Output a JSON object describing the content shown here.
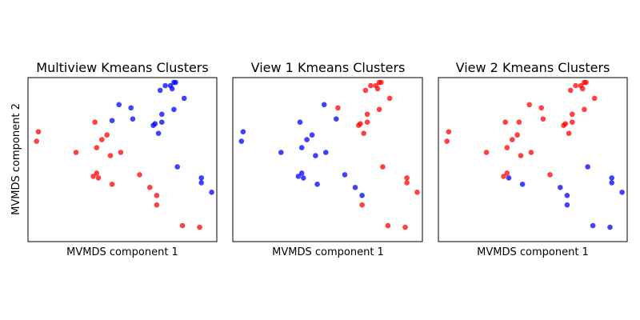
{
  "colors": {
    "cluster_0": "#ff0000",
    "cluster_1": "#0000ff",
    "marker_alpha": 0.75
  },
  "chart_data": [
    {
      "type": "scatter",
      "title": "Multiview Kmeans Clusters",
      "xlabel": "MVMDS component 1",
      "ylabel": "MVMDS component 2",
      "xlim": [
        -0.5,
        10.5
      ],
      "ylim": [
        -0.5,
        9.8
      ],
      "ticks": "none",
      "points": [
        {
          "x": 0.0,
          "y": 5.8,
          "c": 0
        },
        {
          "x": 0.1,
          "y": 6.4,
          "c": 0
        },
        {
          "x": 2.3,
          "y": 5.1,
          "c": 0
        },
        {
          "x": 3.5,
          "y": 5.4,
          "c": 0
        },
        {
          "x": 3.3,
          "y": 3.6,
          "c": 0
        },
        {
          "x": 3.5,
          "y": 3.8,
          "c": 0
        },
        {
          "x": 3.6,
          "y": 3.5,
          "c": 0
        },
        {
          "x": 3.8,
          "y": 5.9,
          "c": 0
        },
        {
          "x": 4.1,
          "y": 6.2,
          "c": 0
        },
        {
          "x": 3.4,
          "y": 7.0,
          "c": 0
        },
        {
          "x": 4.3,
          "y": 4.9,
          "c": 0
        },
        {
          "x": 4.4,
          "y": 3.1,
          "c": 0
        },
        {
          "x": 4.9,
          "y": 5.1,
          "c": 0
        },
        {
          "x": 6.0,
          "y": 3.7,
          "c": 0
        },
        {
          "x": 6.6,
          "y": 2.9,
          "c": 0
        },
        {
          "x": 7.0,
          "y": 2.4,
          "c": 0
        },
        {
          "x": 7.0,
          "y": 1.8,
          "c": 0
        },
        {
          "x": 8.5,
          "y": 0.5,
          "c": 0
        },
        {
          "x": 9.5,
          "y": 0.4,
          "c": 0
        },
        {
          "x": 4.8,
          "y": 8.1,
          "c": 1
        },
        {
          "x": 5.5,
          "y": 7.9,
          "c": 1
        },
        {
          "x": 4.4,
          "y": 7.1,
          "c": 1
        },
        {
          "x": 5.6,
          "y": 7.2,
          "c": 1
        },
        {
          "x": 6.8,
          "y": 6.8,
          "c": 1
        },
        {
          "x": 6.9,
          "y": 6.9,
          "c": 1
        },
        {
          "x": 7.3,
          "y": 7.0,
          "c": 1
        },
        {
          "x": 7.3,
          "y": 7.5,
          "c": 1
        },
        {
          "x": 7.1,
          "y": 6.3,
          "c": 1
        },
        {
          "x": 7.2,
          "y": 9.0,
          "c": 1
        },
        {
          "x": 7.5,
          "y": 9.3,
          "c": 1
        },
        {
          "x": 7.8,
          "y": 9.3,
          "c": 1
        },
        {
          "x": 7.9,
          "y": 9.1,
          "c": 1
        },
        {
          "x": 8.0,
          "y": 9.5,
          "c": 1
        },
        {
          "x": 8.1,
          "y": 9.5,
          "c": 1
        },
        {
          "x": 8.0,
          "y": 7.8,
          "c": 1
        },
        {
          "x": 8.6,
          "y": 8.5,
          "c": 1
        },
        {
          "x": 8.2,
          "y": 4.2,
          "c": 1
        },
        {
          "x": 9.6,
          "y": 3.5,
          "c": 1
        },
        {
          "x": 9.6,
          "y": 3.2,
          "c": 1
        },
        {
          "x": 10.2,
          "y": 2.6,
          "c": 1
        }
      ]
    },
    {
      "type": "scatter",
      "title": "View 1 Kmeans Clusters",
      "xlabel": "MVMDS component 1",
      "ylabel": "",
      "xlim": [
        -0.5,
        10.5
      ],
      "ylim": [
        -0.5,
        9.8
      ],
      "ticks": "none",
      "points": [
        {
          "x": 0.0,
          "y": 5.8,
          "c": 1
        },
        {
          "x": 0.1,
          "y": 6.4,
          "c": 1
        },
        {
          "x": 2.3,
          "y": 5.1,
          "c": 1
        },
        {
          "x": 3.5,
          "y": 5.4,
          "c": 1
        },
        {
          "x": 3.3,
          "y": 3.6,
          "c": 1
        },
        {
          "x": 3.5,
          "y": 3.8,
          "c": 1
        },
        {
          "x": 3.6,
          "y": 3.5,
          "c": 1
        },
        {
          "x": 3.8,
          "y": 5.9,
          "c": 1
        },
        {
          "x": 4.1,
          "y": 6.2,
          "c": 1
        },
        {
          "x": 3.4,
          "y": 7.0,
          "c": 1
        },
        {
          "x": 4.3,
          "y": 4.9,
          "c": 1
        },
        {
          "x": 4.4,
          "y": 3.1,
          "c": 1
        },
        {
          "x": 4.9,
          "y": 5.1,
          "c": 1
        },
        {
          "x": 6.0,
          "y": 3.7,
          "c": 1
        },
        {
          "x": 6.6,
          "y": 2.9,
          "c": 1
        },
        {
          "x": 7.0,
          "y": 2.4,
          "c": 1
        },
        {
          "x": 4.8,
          "y": 8.1,
          "c": 1
        },
        {
          "x": 5.5,
          "y": 7.2,
          "c": 1
        },
        {
          "x": 7.0,
          "y": 1.8,
          "c": 0
        },
        {
          "x": 8.5,
          "y": 0.5,
          "c": 0
        },
        {
          "x": 9.5,
          "y": 0.4,
          "c": 0
        },
        {
          "x": 5.6,
          "y": 7.9,
          "c": 0
        },
        {
          "x": 6.8,
          "y": 6.8,
          "c": 0
        },
        {
          "x": 6.9,
          "y": 6.9,
          "c": 0
        },
        {
          "x": 7.3,
          "y": 7.0,
          "c": 0
        },
        {
          "x": 7.3,
          "y": 7.5,
          "c": 0
        },
        {
          "x": 7.1,
          "y": 6.3,
          "c": 0
        },
        {
          "x": 7.2,
          "y": 9.0,
          "c": 0
        },
        {
          "x": 7.5,
          "y": 9.3,
          "c": 0
        },
        {
          "x": 7.8,
          "y": 9.3,
          "c": 0
        },
        {
          "x": 7.9,
          "y": 9.1,
          "c": 0
        },
        {
          "x": 8.0,
          "y": 9.5,
          "c": 0
        },
        {
          "x": 8.1,
          "y": 9.5,
          "c": 0
        },
        {
          "x": 8.0,
          "y": 7.8,
          "c": 0
        },
        {
          "x": 8.6,
          "y": 8.5,
          "c": 0
        },
        {
          "x": 8.2,
          "y": 4.2,
          "c": 0
        },
        {
          "x": 9.6,
          "y": 3.5,
          "c": 0
        },
        {
          "x": 9.6,
          "y": 3.2,
          "c": 0
        },
        {
          "x": 10.2,
          "y": 2.6,
          "c": 0
        }
      ]
    },
    {
      "type": "scatter",
      "title": "View 2 Kmeans Clusters",
      "xlabel": "MVMDS component 1",
      "ylabel": "",
      "xlim": [
        -0.5,
        10.5
      ],
      "ylim": [
        -0.5,
        9.8
      ],
      "ticks": "none",
      "points": [
        {
          "x": 0.0,
          "y": 5.8,
          "c": 0
        },
        {
          "x": 0.1,
          "y": 6.4,
          "c": 0
        },
        {
          "x": 2.3,
          "y": 5.1,
          "c": 0
        },
        {
          "x": 3.5,
          "y": 5.4,
          "c": 0
        },
        {
          "x": 3.3,
          "y": 3.6,
          "c": 0
        },
        {
          "x": 3.5,
          "y": 3.8,
          "c": 0
        },
        {
          "x": 3.8,
          "y": 5.9,
          "c": 0
        },
        {
          "x": 4.1,
          "y": 6.2,
          "c": 0
        },
        {
          "x": 3.4,
          "y": 7.0,
          "c": 0
        },
        {
          "x": 4.3,
          "y": 4.9,
          "c": 0
        },
        {
          "x": 4.9,
          "y": 5.1,
          "c": 0
        },
        {
          "x": 4.2,
          "y": 7.0,
          "c": 0
        },
        {
          "x": 4.8,
          "y": 8.1,
          "c": 0
        },
        {
          "x": 5.5,
          "y": 7.9,
          "c": 0
        },
        {
          "x": 5.6,
          "y": 7.2,
          "c": 0
        },
        {
          "x": 6.0,
          "y": 3.7,
          "c": 0
        },
        {
          "x": 6.8,
          "y": 6.8,
          "c": 0
        },
        {
          "x": 6.9,
          "y": 6.9,
          "c": 0
        },
        {
          "x": 7.3,
          "y": 7.0,
          "c": 0
        },
        {
          "x": 7.3,
          "y": 7.5,
          "c": 0
        },
        {
          "x": 7.1,
          "y": 6.3,
          "c": 0
        },
        {
          "x": 7.2,
          "y": 9.0,
          "c": 0
        },
        {
          "x": 7.5,
          "y": 9.3,
          "c": 0
        },
        {
          "x": 7.8,
          "y": 9.3,
          "c": 0
        },
        {
          "x": 7.9,
          "y": 9.1,
          "c": 0
        },
        {
          "x": 8.0,
          "y": 9.5,
          "c": 0
        },
        {
          "x": 8.1,
          "y": 9.5,
          "c": 0
        },
        {
          "x": 8.0,
          "y": 7.8,
          "c": 0
        },
        {
          "x": 8.6,
          "y": 8.5,
          "c": 0
        },
        {
          "x": 3.6,
          "y": 3.5,
          "c": 1
        },
        {
          "x": 4.4,
          "y": 3.1,
          "c": 1
        },
        {
          "x": 6.6,
          "y": 2.9,
          "c": 1
        },
        {
          "x": 7.0,
          "y": 2.4,
          "c": 1
        },
        {
          "x": 7.0,
          "y": 1.8,
          "c": 1
        },
        {
          "x": 8.5,
          "y": 0.5,
          "c": 1
        },
        {
          "x": 9.5,
          "y": 0.4,
          "c": 1
        },
        {
          "x": 8.2,
          "y": 4.2,
          "c": 1
        },
        {
          "x": 9.6,
          "y": 3.5,
          "c": 1
        },
        {
          "x": 9.6,
          "y": 3.2,
          "c": 1
        },
        {
          "x": 10.2,
          "y": 2.6,
          "c": 1
        }
      ]
    }
  ]
}
